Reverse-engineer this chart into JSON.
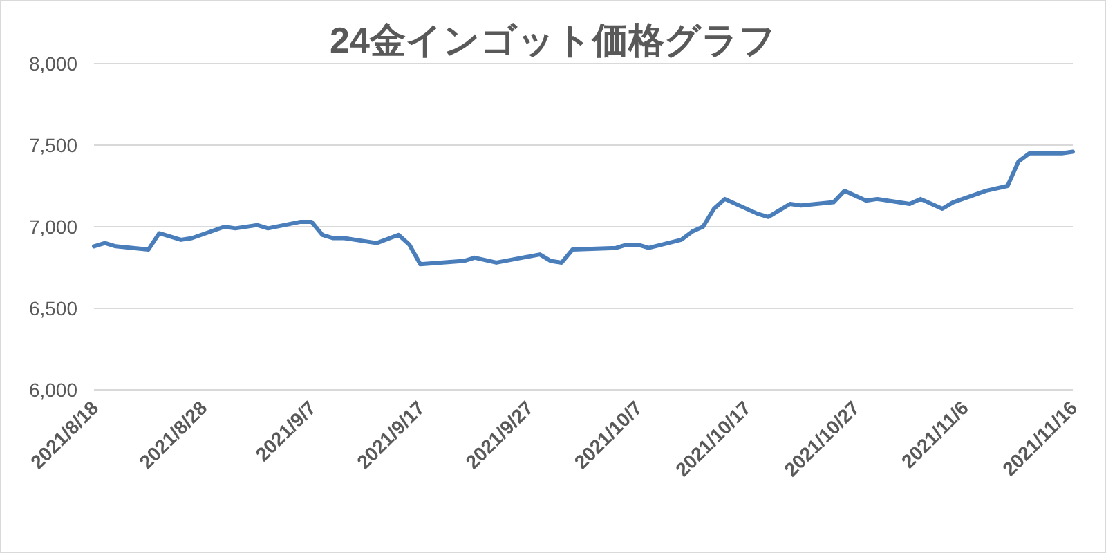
{
  "chart_data": {
    "type": "line",
    "title": "24金インゴット価格グラフ",
    "x": [
      "2021-08-18",
      "2021-08-19",
      "2021-08-20",
      "2021-08-23",
      "2021-08-24",
      "2021-08-26",
      "2021-08-27",
      "2021-08-30",
      "2021-08-31",
      "2021-09-02",
      "2021-09-03",
      "2021-09-06",
      "2021-09-07",
      "2021-09-08",
      "2021-09-09",
      "2021-09-10",
      "2021-09-13",
      "2021-09-15",
      "2021-09-16",
      "2021-09-17",
      "2021-09-21",
      "2021-09-22",
      "2021-09-24",
      "2021-09-28",
      "2021-09-29",
      "2021-09-30",
      "2021-10-01",
      "2021-10-05",
      "2021-10-06",
      "2021-10-07",
      "2021-10-08",
      "2021-10-11",
      "2021-10-12",
      "2021-10-13",
      "2021-10-14",
      "2021-10-15",
      "2021-10-18",
      "2021-10-19",
      "2021-10-21",
      "2021-10-22",
      "2021-10-25",
      "2021-10-26",
      "2021-10-28",
      "2021-10-29",
      "2021-11-01",
      "2021-11-02",
      "2021-11-04",
      "2021-11-05",
      "2021-11-08",
      "2021-11-10",
      "2021-11-11",
      "2021-11-12",
      "2021-11-15",
      "2021-11-16"
    ],
    "series": [
      {
        "color": "#4a7ebb",
        "values": [
          6880,
          6900,
          6880,
          6860,
          6960,
          6920,
          6930,
          7000,
          6990,
          7010,
          6990,
          7030,
          7030,
          6950,
          6930,
          6930,
          6900,
          6950,
          6890,
          6770,
          6790,
          6810,
          6780,
          6830,
          6790,
          6780,
          6860,
          6870,
          6890,
          6890,
          6870,
          6920,
          6970,
          7000,
          7110,
          7170,
          7080,
          7060,
          7140,
          7130,
          7150,
          7220,
          7160,
          7170,
          7140,
          7170,
          7110,
          7150,
          7220,
          7250,
          7400,
          7450,
          7450,
          7460
        ]
      }
    ],
    "xlim": [
      "2021-08-18",
      "2021-11-16"
    ],
    "xticks": [
      {
        "value": "2021-08-18",
        "label": "2021/8/18"
      },
      {
        "value": "2021-08-28",
        "label": "2021/8/28"
      },
      {
        "value": "2021-09-07",
        "label": "2021/9/7"
      },
      {
        "value": "2021-09-17",
        "label": "2021/9/17"
      },
      {
        "value": "2021-09-27",
        "label": "2021/9/27"
      },
      {
        "value": "2021-10-07",
        "label": "2021/10/7"
      },
      {
        "value": "2021-10-17",
        "label": "2021/10/17"
      },
      {
        "value": "2021-10-27",
        "label": "2021/10/27"
      },
      {
        "value": "2021-11-06",
        "label": "2021/11/6"
      },
      {
        "value": "2021-11-16",
        "label": "2021/11/16"
      }
    ],
    "ylim": [
      6000,
      8000
    ],
    "yticks": [
      {
        "value": 6000,
        "label": "6,000"
      },
      {
        "value": 6500,
        "label": "6,500"
      },
      {
        "value": 7000,
        "label": "7,000"
      },
      {
        "value": 7500,
        "label": "7,500"
      },
      {
        "value": 8000,
        "label": "8,000"
      }
    ],
    "grid": "y",
    "marker": "none",
    "line_style": "solid"
  }
}
